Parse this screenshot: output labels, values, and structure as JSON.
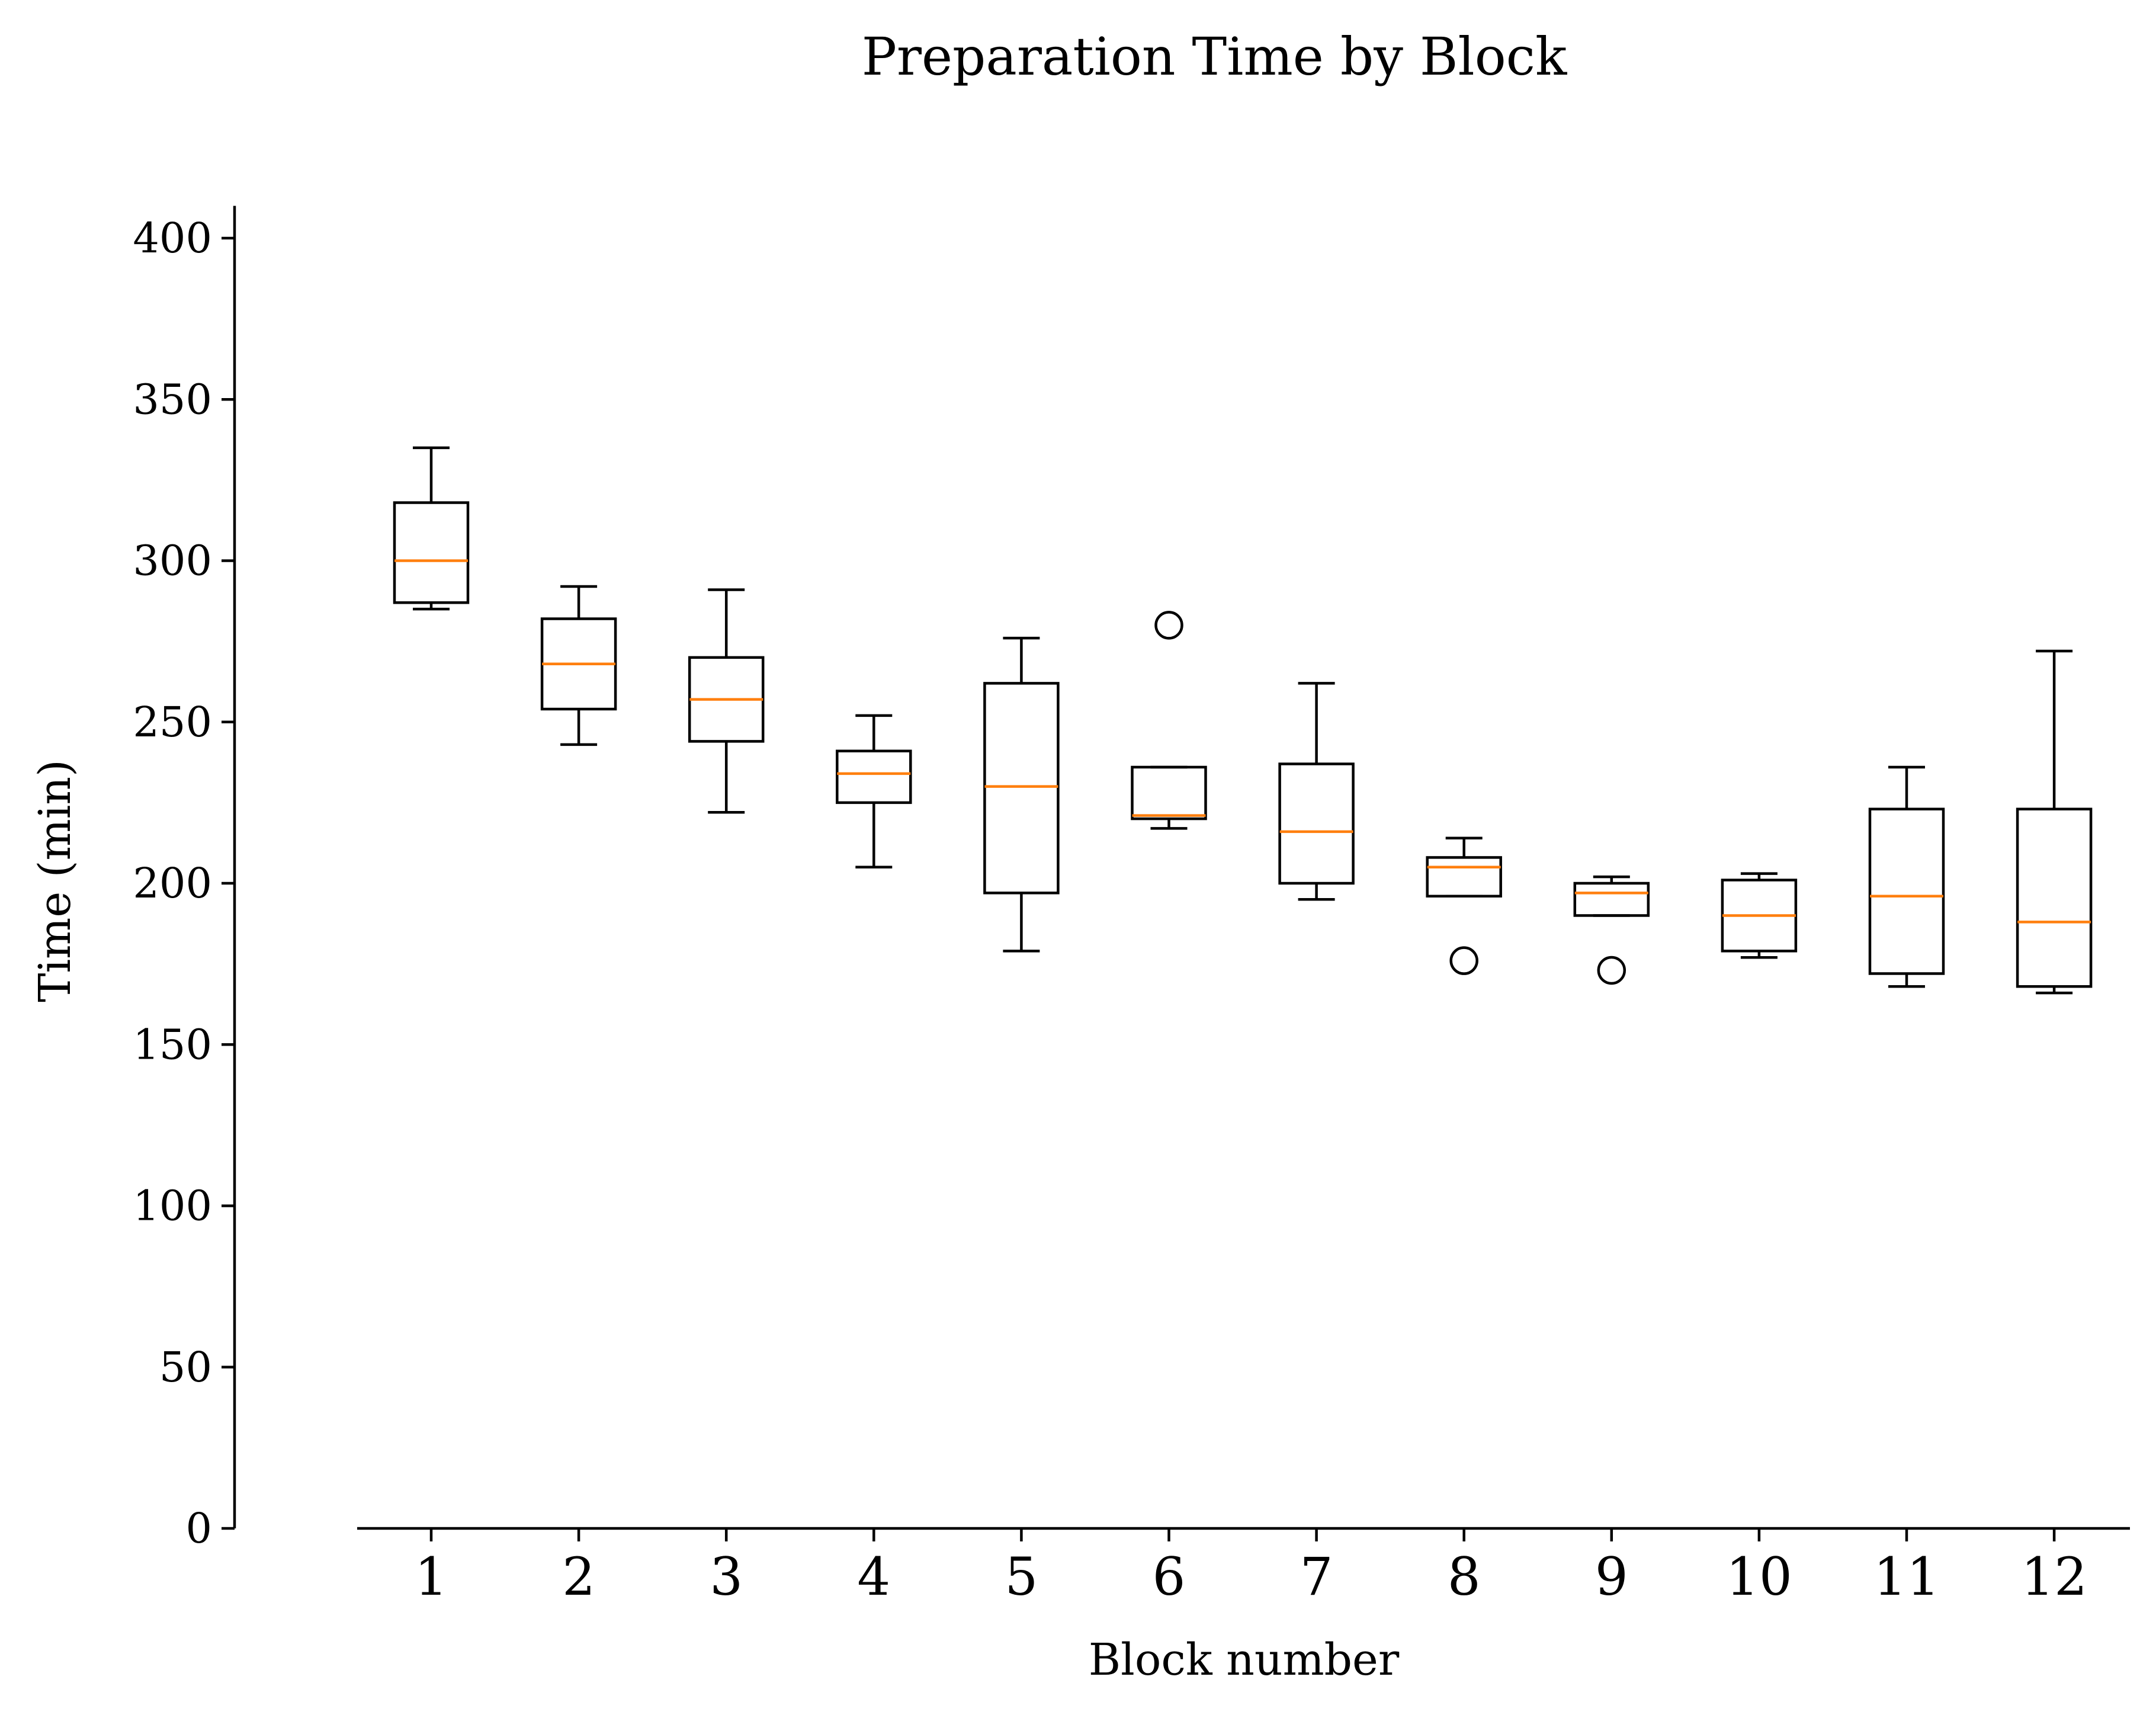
{
  "chart_data": {
    "type": "box",
    "title": "Preparation Time by Block",
    "xlabel": "Block number",
    "ylabel": "Time (min)",
    "ylim": [
      0,
      410
    ],
    "yticks": [
      0,
      50,
      100,
      150,
      200,
      250,
      300,
      350,
      400
    ],
    "categories": [
      "1",
      "2",
      "3",
      "4",
      "5",
      "6",
      "7",
      "8",
      "9",
      "10",
      "11",
      "12"
    ],
    "boxes": [
      {
        "category": "1",
        "whisker_low": 285,
        "q1": 287,
        "median": 300,
        "q3": 318,
        "whisker_high": 335,
        "outliers": []
      },
      {
        "category": "2",
        "whisker_low": 243,
        "q1": 254,
        "median": 268,
        "q3": 282,
        "whisker_high": 292,
        "outliers": []
      },
      {
        "category": "3",
        "whisker_low": 222,
        "q1": 244,
        "median": 257,
        "q3": 270,
        "whisker_high": 291,
        "outliers": []
      },
      {
        "category": "4",
        "whisker_low": 205,
        "q1": 225,
        "median": 234,
        "q3": 241,
        "whisker_high": 252,
        "outliers": []
      },
      {
        "category": "5",
        "whisker_low": 179,
        "q1": 197,
        "median": 230,
        "q3": 262,
        "whisker_high": 276,
        "outliers": []
      },
      {
        "category": "6",
        "whisker_low": 217,
        "q1": 220,
        "median": 221,
        "q3": 236,
        "whisker_high": 236,
        "outliers": [
          280
        ]
      },
      {
        "category": "7",
        "whisker_low": 195,
        "q1": 200,
        "median": 216,
        "q3": 237,
        "whisker_high": 262,
        "outliers": []
      },
      {
        "category": "8",
        "whisker_low": 196,
        "q1": 196,
        "median": 205,
        "q3": 208,
        "whisker_high": 214,
        "outliers": [
          176
        ]
      },
      {
        "category": "9",
        "whisker_low": 190,
        "q1": 190,
        "median": 197,
        "q3": 200,
        "whisker_high": 202,
        "outliers": [
          173
        ]
      },
      {
        "category": "10",
        "whisker_low": 177,
        "q1": 179,
        "median": 190,
        "q3": 201,
        "whisker_high": 203,
        "outliers": []
      },
      {
        "category": "11",
        "whisker_low": 168,
        "q1": 172,
        "median": 196,
        "q3": 223,
        "whisker_high": 236,
        "outliers": []
      },
      {
        "category": "12",
        "whisker_low": 166,
        "q1": 168,
        "median": 188,
        "q3": 223,
        "whisker_high": 272,
        "outliers": []
      }
    ],
    "grid": false,
    "box_color": "#000000",
    "median_color": "#ff7f0e"
  }
}
